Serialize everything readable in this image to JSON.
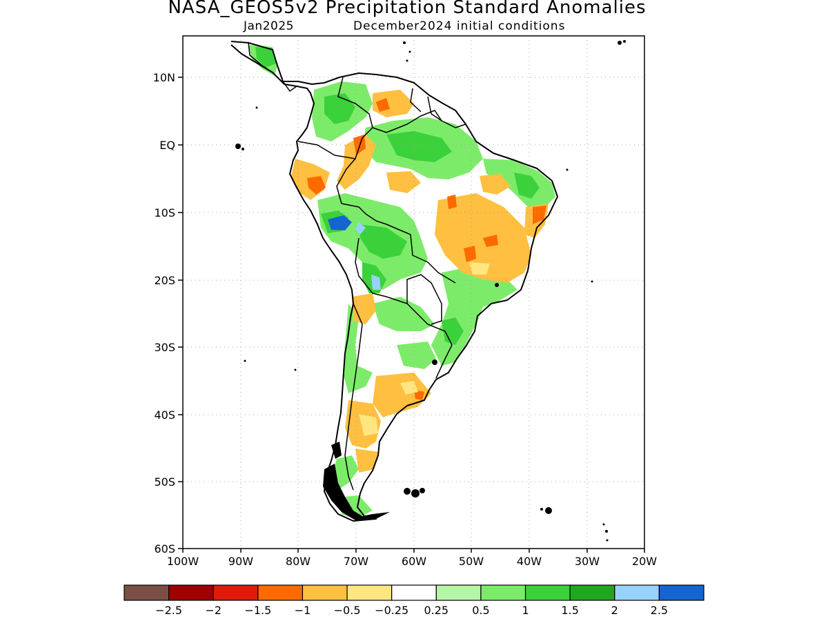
{
  "title": "NASA_GEOS5v2 Precipitation Standard Anomalies",
  "subtitle_left": "Jan2025",
  "subtitle_right": "December2024 initial conditions",
  "lat_ticks": [
    "10N",
    "EQ",
    "10S",
    "20S",
    "30S",
    "40S",
    "50S",
    "60S"
  ],
  "lon_ticks": [
    "100W",
    "90W",
    "80W",
    "70W",
    "60W",
    "50W",
    "40W",
    "30W",
    "20W"
  ],
  "colorbar": {
    "colors": [
      "#7b4f45",
      "#a00000",
      "#e01a0a",
      "#ff6a00",
      "#ffbf40",
      "#ffe680",
      "#ffffff",
      "#b4f5a6",
      "#7deb6a",
      "#3bd13b",
      "#1fa81f",
      "#96d2fa",
      "#1464d2"
    ],
    "labels": [
      "−2.5",
      "−2",
      "−1.5",
      "−1",
      "−0.5",
      "−0.25",
      "0.25",
      "0.5",
      "1",
      "1.5",
      "2",
      "2.5"
    ]
  }
}
